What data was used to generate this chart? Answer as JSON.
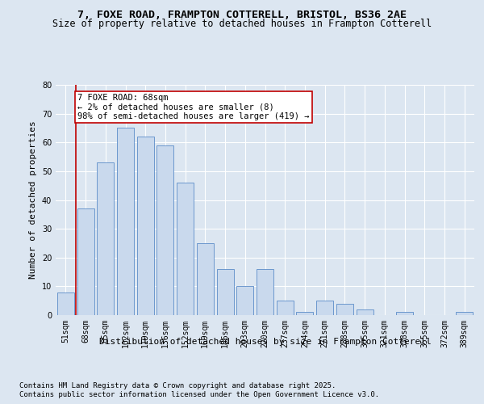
{
  "title_line1": "7, FOXE ROAD, FRAMPTON COTTERELL, BRISTOL, BS36 2AE",
  "title_line2": "Size of property relative to detached houses in Frampton Cotterell",
  "xlabel": "Distribution of detached houses by size in Frampton Cotterell",
  "ylabel": "Number of detached properties",
  "categories": [
    "51sqm",
    "68sqm",
    "85sqm",
    "102sqm",
    "119sqm",
    "136sqm",
    "152sqm",
    "169sqm",
    "186sqm",
    "203sqm",
    "220sqm",
    "237sqm",
    "254sqm",
    "271sqm",
    "288sqm",
    "305sqm",
    "321sqm",
    "338sqm",
    "355sqm",
    "372sqm",
    "389sqm"
  ],
  "bar_values": [
    8,
    37,
    53,
    65,
    62,
    59,
    46,
    25,
    16,
    10,
    16,
    5,
    1,
    5,
    4,
    2,
    0,
    1,
    0,
    0,
    1
  ],
  "highlight_index": 1,
  "highlight_color": "#c00000",
  "bar_fill_color": "#c9d9ed",
  "bar_edge_color": "#5b8cc8",
  "bg_color": "#dce6f1",
  "annotation_text": "7 FOXE ROAD: 68sqm\n← 2% of detached houses are smaller (8)\n98% of semi-detached houses are larger (419) →",
  "annotation_box_color": "#c00000",
  "ylim": [
    0,
    80
  ],
  "yticks": [
    0,
    10,
    20,
    30,
    40,
    50,
    60,
    70,
    80
  ],
  "footer_line1": "Contains HM Land Registry data © Crown copyright and database right 2025.",
  "footer_line2": "Contains public sector information licensed under the Open Government Licence v3.0.",
  "title_fontsize": 9.5,
  "subtitle_fontsize": 8.5,
  "axis_label_fontsize": 8,
  "tick_fontsize": 7,
  "annotation_fontsize": 7.5,
  "footer_fontsize": 6.5
}
